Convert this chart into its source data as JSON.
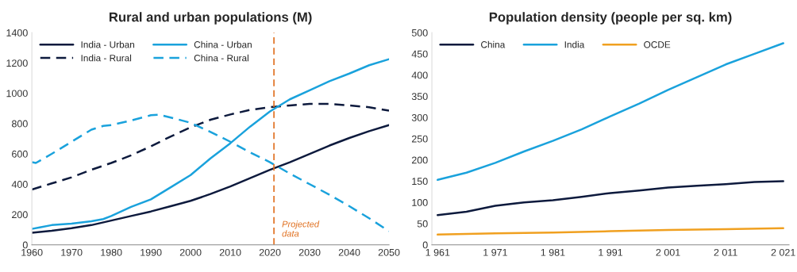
{
  "chart_data": [
    {
      "type": "line",
      "title": "Rural and urban populations (M)",
      "xlim": [
        1960,
        2050
      ],
      "xticks": [
        1960,
        1970,
        1980,
        1990,
        2000,
        2010,
        2020,
        2030,
        2040,
        2050
      ],
      "ylim": [
        0,
        1400
      ],
      "yticks": [
        0,
        200,
        400,
        600,
        800,
        1000,
        1200,
        1400
      ],
      "grid": false,
      "legend": "top left",
      "marker": "none",
      "series": [
        {
          "name": "India - Urban",
          "color": "#0d1a3d",
          "line_style": "solid",
          "x": [
            1960,
            1965,
            1970,
            1975,
            1980,
            1985,
            1990,
            1995,
            2000,
            2005,
            2010,
            2015,
            2020,
            2025,
            2030,
            2035,
            2040,
            2045,
            2050
          ],
          "values": [
            80,
            93,
            110,
            130,
            160,
            190,
            220,
            255,
            290,
            335,
            385,
            440,
            495,
            545,
            600,
            655,
            705,
            750,
            790
          ]
        },
        {
          "name": "India - Rural",
          "color": "#0d1a3d",
          "line_style": "dashed",
          "x": [
            1960,
            1965,
            1970,
            1975,
            1980,
            1985,
            1990,
            1995,
            2000,
            2005,
            2010,
            2015,
            2020,
            2025,
            2030,
            2035,
            2040,
            2045,
            2050
          ],
          "values": [
            365,
            405,
            445,
            495,
            540,
            590,
            650,
            715,
            775,
            825,
            860,
            890,
            908,
            920,
            930,
            930,
            920,
            908,
            885
          ]
        },
        {
          "name": "China - Urban",
          "color": "#1aa2dc",
          "line_style": "solid",
          "x": [
            1960,
            1962,
            1965,
            1970,
            1975,
            1978,
            1980,
            1985,
            1990,
            1995,
            2000,
            2005,
            2010,
            2015,
            2020,
            2025,
            2030,
            2035,
            2040,
            2045,
            2050
          ],
          "values": [
            105,
            115,
            130,
            140,
            155,
            170,
            190,
            250,
            300,
            380,
            460,
            570,
            670,
            780,
            880,
            960,
            1020,
            1080,
            1130,
            1185,
            1225
          ]
        },
        {
          "name": "China - Rural",
          "color": "#1aa2dc",
          "line_style": "dashed",
          "x": [
            1960,
            1961,
            1965,
            1970,
            1975,
            1978,
            1980,
            1985,
            1990,
            1992,
            1995,
            2000,
            2005,
            2010,
            2015,
            2020,
            2025,
            2030,
            2035,
            2040,
            2045,
            2050
          ],
          "values": [
            545,
            540,
            600,
            680,
            760,
            785,
            790,
            820,
            855,
            858,
            840,
            805,
            745,
            680,
            610,
            545,
            470,
            400,
            330,
            255,
            175,
            90
          ]
        }
      ],
      "ref_lines": [
        {
          "axis": "x",
          "value": 2021,
          "label": "Projected\ndata",
          "color": "#e07020",
          "line_style": "dashed"
        }
      ]
    },
    {
      "type": "line",
      "title": "Population density (people per sq. km)",
      "xlim": [
        1960,
        2022
      ],
      "xticks": [
        {
          "value": 1961,
          "label": "1 961"
        },
        {
          "value": 1971,
          "label": "1 971"
        },
        {
          "value": 1981,
          "label": "1 981"
        },
        {
          "value": 1991,
          "label": "1 991"
        },
        {
          "value": 2001,
          "label": "2 001"
        },
        {
          "value": 2011,
          "label": "2 011"
        },
        {
          "value": 2021,
          "label": "2 021"
        }
      ],
      "ylim": [
        0,
        500
      ],
      "yticks": [
        0,
        50,
        100,
        150,
        200,
        250,
        300,
        350,
        400,
        450,
        500
      ],
      "grid": false,
      "legend": "top left",
      "marker": "none",
      "line_style": "solid",
      "series": [
        {
          "name": "China",
          "color": "#0d1a3d",
          "x": [
            1961,
            1966,
            1971,
            1976,
            1981,
            1986,
            1991,
            1996,
            2001,
            2006,
            2011,
            2016,
            2021
          ],
          "values": [
            70,
            78,
            92,
            100,
            105,
            113,
            122,
            128,
            135,
            139,
            143,
            148,
            150
          ]
        },
        {
          "name": "India",
          "color": "#1aa2dc",
          "x": [
            1961,
            1966,
            1971,
            1976,
            1981,
            1986,
            1991,
            1996,
            2001,
            2006,
            2011,
            2016,
            2021
          ],
          "values": [
            153,
            170,
            193,
            220,
            245,
            272,
            303,
            333,
            365,
            395,
            425,
            450,
            475
          ]
        },
        {
          "name": "OCDE",
          "color": "#f0a020",
          "x": [
            1961,
            1971,
            1981,
            1991,
            2001,
            2011,
            2021
          ],
          "values": [
            24,
            27,
            29,
            32,
            35,
            37,
            39
          ]
        }
      ]
    }
  ]
}
